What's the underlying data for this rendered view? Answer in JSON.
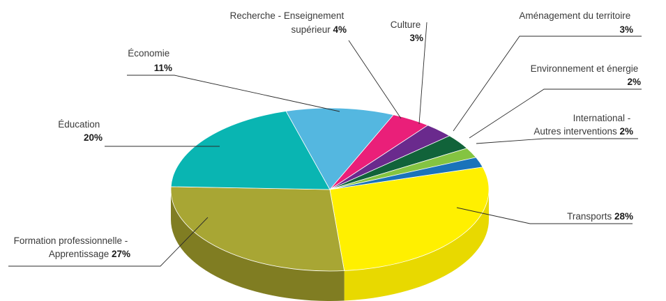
{
  "chart_data": {
    "type": "pie",
    "style": "3d",
    "legend": "none",
    "slices": [
      {
        "label": "Transports",
        "value": 28,
        "value_label": "28%",
        "color": "#fff000",
        "side_color": "#e8d900"
      },
      {
        "label": "Formation professionnelle - Apprentissage",
        "value": 27,
        "value_label": "27%",
        "color": "#a8a634",
        "side_color": "#807d22"
      },
      {
        "label": "Éducation",
        "value": 20,
        "value_label": "20%",
        "color": "#09b5b2",
        "side_color": "#078a88"
      },
      {
        "label": "Économie",
        "value": 11,
        "value_label": "11%",
        "color": "#54b7e0",
        "side_color": "#3e8fb1"
      },
      {
        "label": "Recherche - Enseignement supérieur",
        "value": 4,
        "value_label": "4%",
        "color": "#ea1f79",
        "side_color": "#b0175b"
      },
      {
        "label": "Culture",
        "value": 3,
        "value_label": "3%",
        "color": "#6a2a8d",
        "side_color": "#4c1e66"
      },
      {
        "label": "Aménagement du territoire",
        "value": 3,
        "value_label": "3%",
        "color": "#11633a",
        "side_color": "#0b4427"
      },
      {
        "label": "Environnement et énergie",
        "value": 2,
        "value_label": "2%",
        "color": "#84c441",
        "side_color": "#619331"
      },
      {
        "label": "International - Autres interventions",
        "value": 2,
        "value_label": "2%",
        "color": "#1a73ba",
        "side_color": "#13568b"
      }
    ]
  }
}
